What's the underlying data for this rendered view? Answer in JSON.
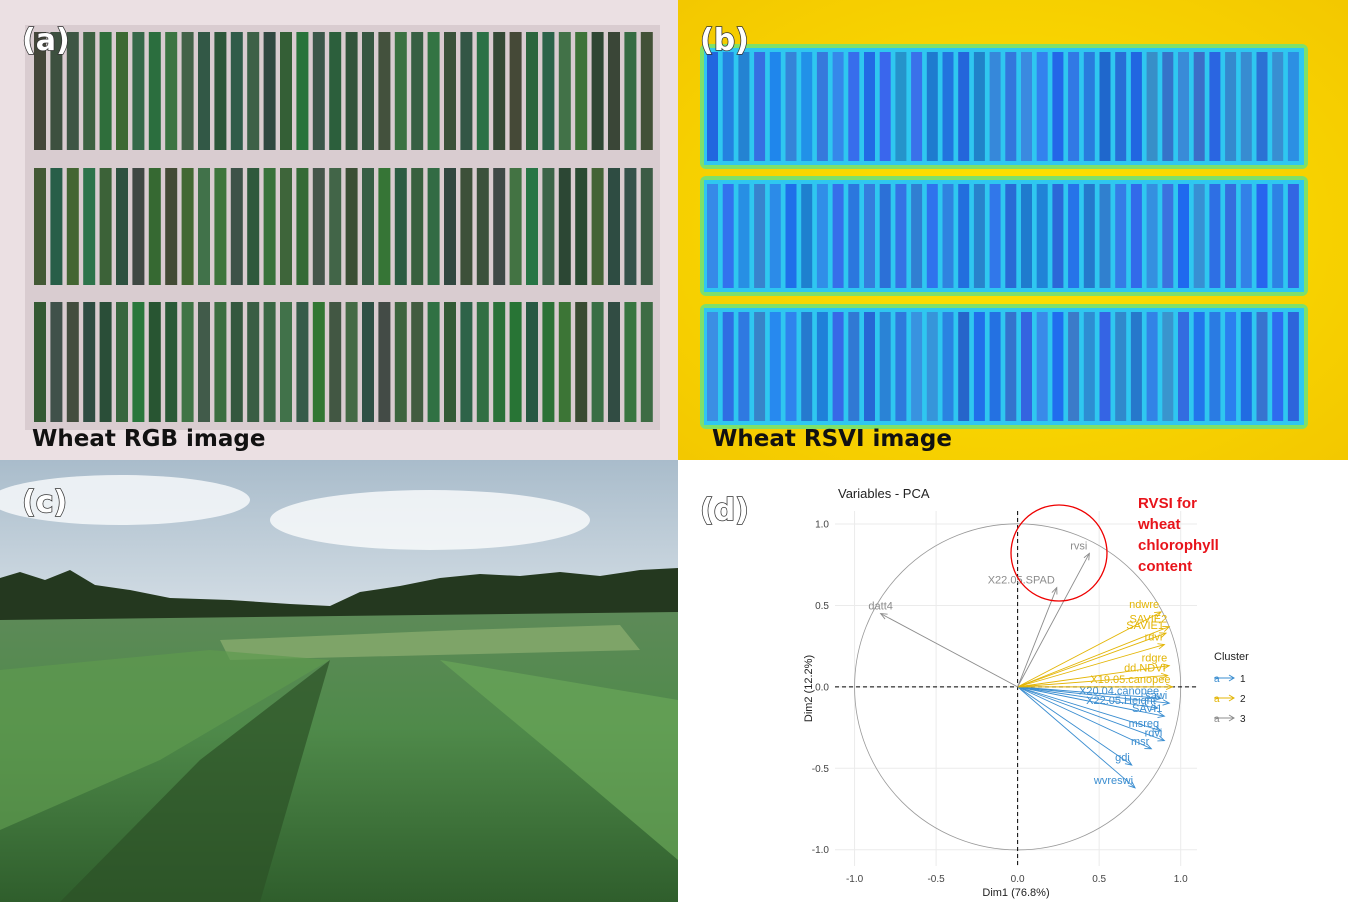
{
  "panels": [
    {
      "tag": "(a)",
      "caption": "Wheat RGB image"
    },
    {
      "tag": "(b)",
      "caption": "Wheat RSVI image"
    },
    {
      "tag": "(c)"
    },
    {
      "tag": "(d)"
    }
  ],
  "chart_data": {
    "type": "pca-arrows",
    "title": "Variables - PCA",
    "x_label": "Dim1 (76.8%)",
    "y_label": "Dim2 (12.2%)",
    "xlim": [
      -1.12,
      1.1
    ],
    "ylim": [
      -1.1,
      1.08
    ],
    "xticks": [
      {
        "value": -1,
        "label": "-1.0"
      },
      -0.5,
      {
        "value": 0,
        "label": "0.0"
      },
      0.5,
      {
        "value": 1,
        "label": "1.0"
      }
    ],
    "yticks": [
      {
        "value": -1,
        "label": "-1.0"
      },
      -0.5,
      {
        "value": 0,
        "label": "0.0"
      },
      0.5,
      {
        "value": 1,
        "label": "1.0"
      }
    ],
    "grid": true,
    "legend_title": "Cluster",
    "annotation": [
      "RVSI for",
      "wheat",
      "chlorophyll",
      "content"
    ],
    "series": [
      {
        "name": "1",
        "color": "#3a8dd0",
        "labels": [
          "X20.04.canopee",
          "X22.05.Height",
          "sawi",
          "SAVI1",
          "msreg",
          "rdvi",
          "msr",
          "gdi",
          "wvreswi"
        ],
        "x": [
          0.88,
          0.86,
          0.93,
          0.9,
          0.88,
          0.9,
          0.82,
          0.7,
          0.72
        ],
        "values": [
          -0.07,
          -0.13,
          -0.1,
          -0.18,
          -0.27,
          -0.33,
          -0.38,
          -0.48,
          -0.62
        ]
      },
      {
        "name": "2",
        "color": "#e3b505",
        "labels": [
          "ndwre",
          "SAVIE2",
          "SAVIE1",
          "rdvi",
          "rdgre",
          "dd.NDVI",
          "X19.05.canopee"
        ],
        "x": [
          0.88,
          0.93,
          0.91,
          0.9,
          0.93,
          0.92,
          0.95
        ],
        "values": [
          0.46,
          0.37,
          0.33,
          0.26,
          0.13,
          0.07,
          0.0
        ]
      },
      {
        "name": "3",
        "color": "#8c8c8c",
        "labels": [
          "rvsi",
          "X22.05.SPAD",
          "datt4"
        ],
        "x": [
          0.44,
          0.24,
          -0.84
        ],
        "values": [
          0.82,
          0.61,
          0.45
        ]
      }
    ]
  }
}
